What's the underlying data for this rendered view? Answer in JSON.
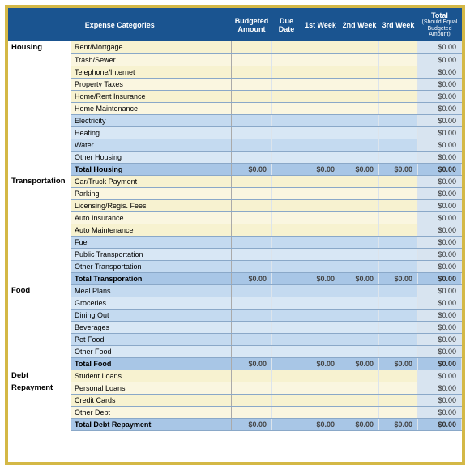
{
  "header": {
    "expense_categories": "Expense Categories",
    "budgeted_amount": "Budgeted Amount",
    "due_date": "Due Date",
    "week1": "1st Week",
    "week2": "2nd Week",
    "week3": "3rd Week",
    "total": "Total",
    "total_sub": "(Should Equal Budgeted Amount)"
  },
  "colors": {
    "header_bg": "#1a5490",
    "border_outer": "#d4b846",
    "yellow_row": "#f7f2d0",
    "yellow_row_alt": "#faf6e0",
    "blue_row": "#c4daf0",
    "blue_row_alt": "#d8e7f5",
    "total_row": "#a8c6e6",
    "total_cell": "#d8e4f0"
  },
  "zero": "$0.00",
  "categories": [
    {
      "label": "Housing",
      "rows": [
        {
          "name": "Rent/Mortgage",
          "rowtype": "y1"
        },
        {
          "name": "Trash/Sewer",
          "rowtype": "y2"
        },
        {
          "name": "Telephone/Internet",
          "rowtype": "y1"
        },
        {
          "name": "Property Taxes",
          "rowtype": "y2"
        },
        {
          "name": "Home/Rent Insurance",
          "rowtype": "y1"
        },
        {
          "name": "Home Maintenance",
          "rowtype": "y2"
        },
        {
          "name": "Electricity",
          "rowtype": "b1"
        },
        {
          "name": "Heating",
          "rowtype": "b2"
        },
        {
          "name": "Water",
          "rowtype": "b1"
        },
        {
          "name": "Other Housing",
          "rowtype": "b2"
        }
      ],
      "total_label": "Total Housing"
    },
    {
      "label": "Transportation",
      "rows": [
        {
          "name": "Car/Truck Payment",
          "rowtype": "y1"
        },
        {
          "name": "Parking",
          "rowtype": "y2"
        },
        {
          "name": "Licensing/Regis. Fees",
          "rowtype": "y1"
        },
        {
          "name": "Auto Insurance",
          "rowtype": "y2"
        },
        {
          "name": "Auto Maintenance",
          "rowtype": "y1"
        },
        {
          "name": "Fuel",
          "rowtype": "b1"
        },
        {
          "name": "Public Transportation",
          "rowtype": "b2"
        },
        {
          "name": "Other Transportation",
          "rowtype": "b1"
        }
      ],
      "total_label": "Total Transporation"
    },
    {
      "label": "Food",
      "rows": [
        {
          "name": "Meal Plans",
          "rowtype": "b1"
        },
        {
          "name": "Groceries",
          "rowtype": "b2"
        },
        {
          "name": "Dining Out",
          "rowtype": "b1"
        },
        {
          "name": "Beverages",
          "rowtype": "b2"
        },
        {
          "name": "Pet Food",
          "rowtype": "b1"
        },
        {
          "name": "Other Food",
          "rowtype": "b2"
        }
      ],
      "total_label": "Total Food"
    },
    {
      "label": "Debt Repayment",
      "label2": "Repayment",
      "label1": "Debt",
      "rows": [
        {
          "name": "Student Loans",
          "rowtype": "y1"
        },
        {
          "name": "Personal Loans",
          "rowtype": "y2"
        },
        {
          "name": "Credit Cards",
          "rowtype": "y1"
        },
        {
          "name": "Other Debt",
          "rowtype": "y2"
        }
      ],
      "total_label": "Total Debt Repayment"
    }
  ]
}
